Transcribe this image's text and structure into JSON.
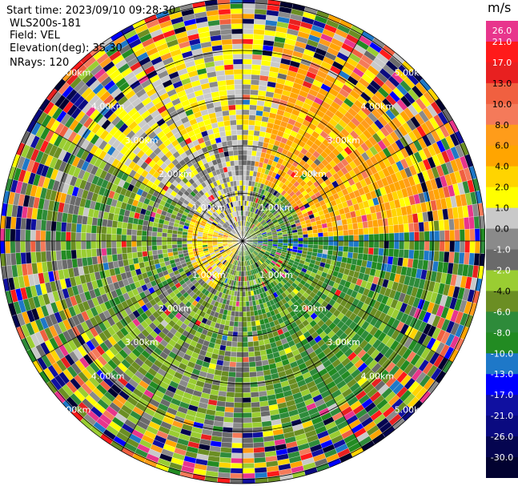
{
  "header": {
    "start_time": "Start time: 2023/09/10 09:28:30",
    "station": "WLS200s-181",
    "field": "Field: VEL",
    "elevation": "Elevation(deg): 35.30",
    "nrays": "NRays: 120"
  },
  "colorbar": {
    "unit": "m/s",
    "bins": [
      {
        "label": "26.0",
        "color": "#e8358c"
      },
      {
        "label": "21.0",
        "color": "#ff1a1a"
      },
      {
        "label": "17.0",
        "color": "#e82020"
      },
      {
        "label": "13.0",
        "color": "#f06040"
      },
      {
        "label": "10.0",
        "color": "#f47a5a"
      },
      {
        "label": "8.0",
        "color": "#ff9c1a"
      },
      {
        "label": "6.0",
        "color": "#ffa500"
      },
      {
        "label": "4.0",
        "color": "#ffd400"
      },
      {
        "label": "2.0",
        "color": "#ffff00"
      },
      {
        "label": "1.0",
        "color": "#c9c9c9"
      },
      {
        "label": "0.0",
        "color": "#8a8a8a"
      },
      {
        "label": "-1.0",
        "color": "#6a6a6a"
      },
      {
        "label": "-2.0",
        "color": "#9acd32"
      },
      {
        "label": "-4.0",
        "color": "#6b8e23"
      },
      {
        "label": "-6.0",
        "color": "#2e8b3a"
      },
      {
        "label": "-8.0",
        "color": "#228b22"
      },
      {
        "label": "-10.0",
        "color": "#1e78c8"
      },
      {
        "label": "-13.0",
        "color": "#0000ff"
      },
      {
        "label": "-17.0",
        "color": "#1010a0"
      },
      {
        "label": "-21.0",
        "color": "#0a0a80"
      },
      {
        "label": "-26.0",
        "color": "#050550"
      },
      {
        "label": "-30.0",
        "color": "#020230"
      }
    ]
  },
  "chart_data": {
    "type": "heatmap",
    "projection": "polar PPI",
    "field": "VEL",
    "units": "m/s",
    "rays": 120,
    "range_rings_km": [
      1.0,
      2.0,
      3.0,
      4.0,
      5.0
    ],
    "range_ring_labels": [
      "1.00km",
      "2.00km",
      "3.00km",
      "4.00km",
      "5.00km"
    ],
    "approx_pattern": [
      {
        "sector": "north-east",
        "velocity_ms": "2 to 8",
        "colors": "yellow-orange"
      },
      {
        "sector": "east",
        "velocity_ms": "-6 to -13",
        "colors": "green-blue"
      },
      {
        "sector": "south-east",
        "velocity_ms": "-4 to -8",
        "colors": "green"
      },
      {
        "sector": "west",
        "velocity_ms": "2 to 4",
        "colors": "yellow"
      },
      {
        "sector": "outer ranges",
        "velocity_ms": "-30 to 26",
        "colors": "noisy"
      }
    ]
  }
}
